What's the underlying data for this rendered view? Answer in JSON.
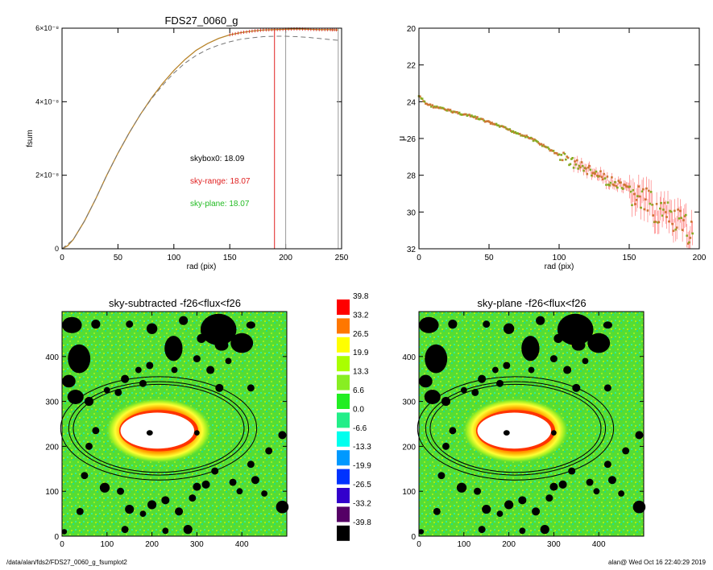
{
  "footer": {
    "path": "/data/alan/fds2/FDS27_0060_g_fsumplot2",
    "user_stamp": "alan@  Wed Oct 16 22:40:29 2019"
  },
  "colors": {
    "total_flux": "#d9a02a",
    "sky_range": "#e02020",
    "sky_plane": "#22bb22",
    "model_dashed": "#777777",
    "marker_gray": "#999999"
  },
  "chart_data": [
    {
      "id": "growth-curve",
      "type": "line",
      "title": "FDS27_0060_g",
      "xlabel": "rad (pix)",
      "ylabel": "fsum",
      "xlim": [
        0,
        250
      ],
      "ylim": [
        0,
        6e-08
      ],
      "x_ticks": [
        "0",
        "50",
        "100",
        "150",
        "200",
        "250"
      ],
      "y_ticks": [
        "0",
        "2×10⁻⁸",
        "4×10⁻⁸",
        "6×10⁻⁸"
      ],
      "x_tick_values": [
        0,
        50,
        100,
        150,
        200,
        250
      ],
      "y_tick_values": [
        0,
        2e-08,
        4e-08,
        6e-08
      ],
      "series": [
        {
          "style": "solid",
          "color": "#d9a02a",
          "x": [
            0,
            5,
            10,
            20,
            30,
            40,
            50,
            60,
            70,
            80,
            90,
            100,
            110,
            120,
            130,
            140,
            150,
            160,
            170,
            180,
            190,
            200,
            210,
            220,
            230,
            240,
            247
          ],
          "y": [
            0,
            8e-10,
            2.5e-09,
            7.5e-09,
            1.35e-08,
            2e-08,
            2.6e-08,
            3.15e-08,
            3.65e-08,
            4.1e-08,
            4.5e-08,
            4.85e-08,
            5.15e-08,
            5.4e-08,
            5.58e-08,
            5.72e-08,
            5.82e-08,
            5.88e-08,
            5.92e-08,
            5.95e-08,
            5.96e-08,
            5.97e-08,
            5.98e-08,
            5.97e-08,
            5.96e-08,
            5.96e-08,
            5.95e-08
          ]
        },
        {
          "style": "dashed",
          "color": "#777777",
          "x": [
            0,
            10,
            20,
            30,
            40,
            50,
            60,
            70,
            80,
            90,
            100,
            110,
            120,
            130,
            140,
            150,
            160,
            170,
            180,
            190,
            200,
            210,
            220,
            230,
            240,
            247
          ],
          "y": [
            0,
            2.5e-09,
            7.5e-09,
            1.35e-08,
            2e-08,
            2.6e-08,
            3.15e-08,
            3.65e-08,
            4.08e-08,
            4.45e-08,
            4.78e-08,
            5.05e-08,
            5.26e-08,
            5.42e-08,
            5.54e-08,
            5.63e-08,
            5.7e-08,
            5.74e-08,
            5.77e-08,
            5.78e-08,
            5.78e-08,
            5.77e-08,
            5.75e-08,
            5.72e-08,
            5.69e-08,
            5.67e-08
          ]
        }
      ],
      "vlines": [
        {
          "x": 190,
          "color": "#e02020"
        },
        {
          "x": 200,
          "color": "#999999"
        },
        {
          "x": 247,
          "color": "#999999"
        }
      ],
      "annotations": [
        {
          "text": "skybox0: 18.09",
          "color": "#000000"
        },
        {
          "text": "sky-range: 18.07",
          "color": "#e02020"
        },
        {
          "text": "sky-plane: 18.07",
          "color": "#22bb22"
        }
      ]
    },
    {
      "id": "surface-brightness",
      "type": "scatter",
      "title": "",
      "xlabel": "rad (pix)",
      "ylabel": "μ",
      "xlim": [
        0,
        200
      ],
      "ylim": [
        32,
        20
      ],
      "y_inverted": true,
      "x_ticks": [
        "0",
        "50",
        "100",
        "150",
        "200"
      ],
      "y_ticks": [
        "20",
        "22",
        "24",
        "26",
        "28",
        "30",
        "32"
      ],
      "x_tick_values": [
        0,
        50,
        100,
        150,
        200
      ],
      "y_tick_values": [
        20,
        22,
        24,
        26,
        28,
        30,
        32
      ],
      "profile_x": [
        0,
        5,
        10,
        20,
        40,
        60,
        80,
        100,
        110,
        120,
        130,
        140,
        150,
        160,
        170,
        180,
        190,
        196
      ],
      "profile_mu": [
        23.7,
        24.1,
        24.25,
        24.45,
        24.85,
        25.4,
        26.0,
        26.9,
        27.3,
        27.7,
        28.1,
        28.5,
        28.9,
        29.4,
        29.9,
        30.4,
        30.9,
        31.2
      ]
    },
    {
      "id": "sky-subtracted-map",
      "type": "heatmap",
      "title": "sky-subtracted -f26<flux<f26",
      "xlim": [
        0,
        500
      ],
      "ylim": [
        0,
        500
      ],
      "x_ticks": [
        "0",
        "100",
        "200",
        "300",
        "400"
      ],
      "y_ticks": [
        "0",
        "100",
        "200",
        "300",
        "400"
      ],
      "tick_values": [
        0,
        100,
        200,
        300,
        400
      ]
    },
    {
      "id": "sky-plane-map",
      "type": "heatmap",
      "title": "sky-plane -f26<flux<f26",
      "xlim": [
        0,
        500
      ],
      "ylim": [
        0,
        500
      ],
      "x_ticks": [
        "0",
        "100",
        "200",
        "300",
        "400"
      ],
      "y_ticks": [
        "0",
        "100",
        "200",
        "300",
        "400"
      ],
      "tick_values": [
        0,
        100,
        200,
        300,
        400
      ]
    },
    {
      "id": "colorbar",
      "type": "table",
      "levels": [
        {
          "label": "39.8",
          "color": "#ff0000"
        },
        {
          "label": "33.2",
          "color": "#ff7700"
        },
        {
          "label": "26.5",
          "color": "#ffff00"
        },
        {
          "label": "19.9",
          "color": "#aaff00"
        },
        {
          "label": "13.3",
          "color": "#88ee22"
        },
        {
          "label": "6.6",
          "color": "#22ee22"
        },
        {
          "label": "0.0",
          "color": "#22ee88"
        },
        {
          "label": "-6.6",
          "color": "#00ffee"
        },
        {
          "label": "-13.3",
          "color": "#0099ff"
        },
        {
          "label": "-19.9",
          "color": "#0033ff"
        },
        {
          "label": "-26.5",
          "color": "#3300cc"
        },
        {
          "label": "-33.2",
          "color": "#550066"
        },
        {
          "label": "-39.8",
          "color": "#000000"
        }
      ]
    }
  ]
}
